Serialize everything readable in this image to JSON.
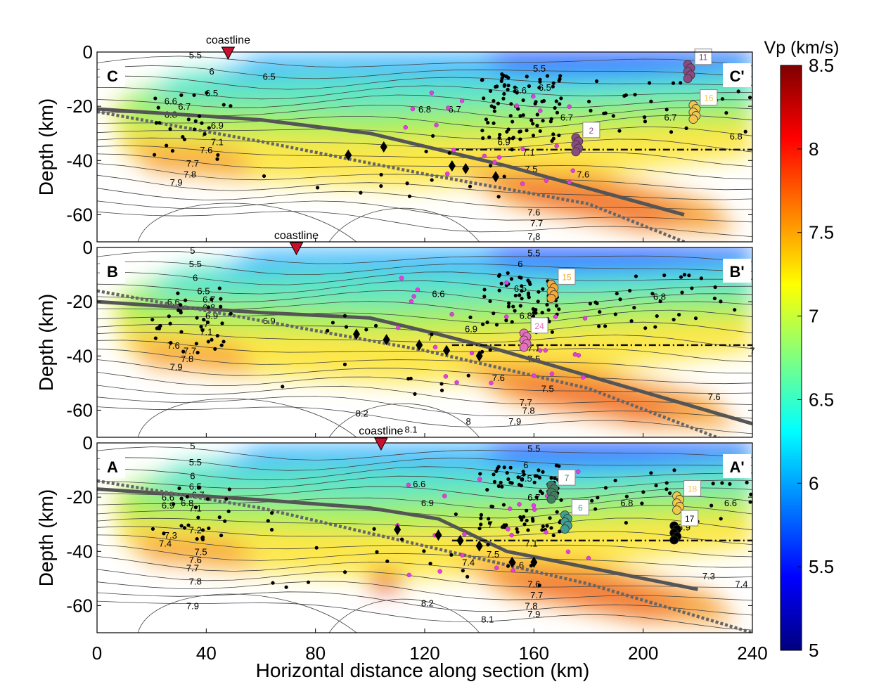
{
  "chart_data": {
    "type": "heatmap",
    "xlabel": "Horizontal distance along section (km)",
    "ylabel": "Depth (km)",
    "xlim": [
      0,
      240
    ],
    "ylim": [
      -70,
      0
    ],
    "x_ticks": [
      0,
      40,
      80,
      120,
      160,
      200,
      240
    ],
    "y_ticks": [
      0,
      -20,
      -40,
      -60
    ],
    "colorbar": {
      "title": "Vp (km/s)",
      "range": [
        5,
        8.5
      ],
      "ticks": [
        8.5,
        8,
        7.5,
        7,
        6.5,
        6,
        5.5,
        5
      ],
      "colormap": "jet"
    },
    "coastline_label": "coastline",
    "panels": [
      {
        "id": "C",
        "start_label": "C",
        "end_label": "C'",
        "coastline_x": 48,
        "velocity_labels": [
          {
            "v": "5.5",
            "x": 36,
            "y": -1
          },
          {
            "v": "6",
            "x": 42,
            "y": -7
          },
          {
            "v": "6.5",
            "x": 42,
            "y": -15
          },
          {
            "v": "6.6",
            "x": 27,
            "y": -18
          },
          {
            "v": "6.7",
            "x": 32,
            "y": -20
          },
          {
            "v": "6.8",
            "x": 27,
            "y": -23
          },
          {
            "v": "6.9",
            "x": 44,
            "y": -27
          },
          {
            "v": "7",
            "x": 39,
            "y": -30
          },
          {
            "v": "7.1",
            "x": 44,
            "y": -33
          },
          {
            "v": "7.6",
            "x": 40,
            "y": -36
          },
          {
            "v": "7.7",
            "x": 35,
            "y": -41
          },
          {
            "v": "7.8",
            "x": 34,
            "y": -45
          },
          {
            "v": "7.9",
            "x": 29,
            "y": -48
          },
          {
            "v": "6.5",
            "x": 63,
            "y": -9
          },
          {
            "v": "6.8",
            "x": 120,
            "y": -21
          },
          {
            "v": "6.7",
            "x": 131,
            "y": -21
          },
          {
            "v": "6.6",
            "x": 155,
            "y": -14
          },
          {
            "v": "6.5",
            "x": 164,
            "y": -13
          },
          {
            "v": "5.5",
            "x": 162,
            "y": -6
          },
          {
            "v": "6.7",
            "x": 172,
            "y": -24
          },
          {
            "v": "6.7",
            "x": 210,
            "y": -24
          },
          {
            "v": "6.8",
            "x": 234,
            "y": -31
          },
          {
            "v": "6.9",
            "x": 149,
            "y": -33
          },
          {
            "v": "7.1",
            "x": 158,
            "y": -37
          },
          {
            "v": "7.5",
            "x": 159,
            "y": -43
          },
          {
            "v": "7.6",
            "x": 178,
            "y": -45
          },
          {
            "v": "7.6",
            "x": 160,
            "y": -59
          },
          {
            "v": "7.7",
            "x": 161,
            "y": -63
          },
          {
            "v": "7.8",
            "x": 160,
            "y": -70
          }
        ],
        "clusters": [
          {
            "label": "11",
            "x": 222,
            "y": -2,
            "color": "#8a4a82"
          },
          {
            "label": "16",
            "x": 224,
            "y": -17,
            "color": "#f2c84a"
          },
          {
            "label": "2",
            "x": 181,
            "y": -29,
            "color": "#8a4a82"
          }
        ]
      },
      {
        "id": "B",
        "start_label": "B",
        "end_label": "B'",
        "coastline_x": 73,
        "velocity_labels": [
          {
            "v": "5",
            "x": 35,
            "y": -1
          },
          {
            "v": "5.5",
            "x": 36,
            "y": -6
          },
          {
            "v": "6",
            "x": 36,
            "y": -11
          },
          {
            "v": "6.5",
            "x": 39,
            "y": -16
          },
          {
            "v": "6.6",
            "x": 28,
            "y": -20
          },
          {
            "v": "6.7",
            "x": 41,
            "y": -19
          },
          {
            "v": "6.8",
            "x": 41,
            "y": -22
          },
          {
            "v": "6.9",
            "x": 42,
            "y": -25
          },
          {
            "v": "7",
            "x": 40,
            "y": -28
          },
          {
            "v": "7.1",
            "x": 40,
            "y": -31
          },
          {
            "v": "7.6",
            "x": 28,
            "y": -36
          },
          {
            "v": "7.7",
            "x": 34,
            "y": -38
          },
          {
            "v": "7.8",
            "x": 33,
            "y": -41
          },
          {
            "v": "7.9",
            "x": 29,
            "y": -44
          },
          {
            "v": "6.9",
            "x": 63,
            "y": -27
          },
          {
            "v": "6.6",
            "x": 125,
            "y": -17
          },
          {
            "v": "7",
            "x": 122,
            "y": -33
          },
          {
            "v": "6.9",
            "x": 137,
            "y": -30
          },
          {
            "v": "6.5",
            "x": 155,
            "y": -15
          },
          {
            "v": "6",
            "x": 155,
            "y": -6
          },
          {
            "v": "5.5",
            "x": 160,
            "y": -2
          },
          {
            "v": "6.8",
            "x": 157,
            "y": -25
          },
          {
            "v": "6.8",
            "x": 206,
            "y": -18
          },
          {
            "v": "7",
            "x": 240,
            "y": -38
          },
          {
            "v": "7.1",
            "x": 160,
            "y": -37
          },
          {
            "v": "7.5",
            "x": 160,
            "y": -41
          },
          {
            "v": "7.6",
            "x": 147,
            "y": -48
          },
          {
            "v": "7.5",
            "x": 165,
            "y": -52
          },
          {
            "v": "7.6",
            "x": 226,
            "y": -55
          },
          {
            "v": "7.7",
            "x": 157,
            "y": -57
          },
          {
            "v": "7.8",
            "x": 158,
            "y": -60
          },
          {
            "v": "7.9",
            "x": 153,
            "y": -64
          },
          {
            "v": "8.2",
            "x": 97,
            "y": -61
          },
          {
            "v": "8.1",
            "x": 115,
            "y": -67
          },
          {
            "v": "8",
            "x": 136,
            "y": -64
          }
        ],
        "clusters": [
          {
            "label": "15",
            "x": 172,
            "y": -11,
            "color": "#f2a93a"
          },
          {
            "label": "24",
            "x": 162,
            "y": -29,
            "color": "#e86fbf"
          }
        ]
      },
      {
        "id": "A",
        "start_label": "A",
        "end_label": "A'",
        "coastline_x": 104,
        "velocity_labels": [
          {
            "v": "5",
            "x": 35,
            "y": -1
          },
          {
            "v": "5.5",
            "x": 36,
            "y": -7
          },
          {
            "v": "6",
            "x": 35,
            "y": -12
          },
          {
            "v": "6.5",
            "x": 36,
            "y": -16
          },
          {
            "v": "6.6",
            "x": 26,
            "y": -20
          },
          {
            "v": "6.7",
            "x": 37,
            "y": -19
          },
          {
            "v": "6.9",
            "x": 26,
            "y": -23
          },
          {
            "v": "6.8",
            "x": 33,
            "y": -22
          },
          {
            "v": "7.1",
            "x": 36,
            "y": -24
          },
          {
            "v": "7.2",
            "x": 36,
            "y": -32
          },
          {
            "v": "7.3",
            "x": 27,
            "y": -34
          },
          {
            "v": "7.4",
            "x": 25,
            "y": -37
          },
          {
            "v": "7.5",
            "x": 38,
            "y": -40
          },
          {
            "v": "7.6",
            "x": 36,
            "y": -43
          },
          {
            "v": "7.7",
            "x": 35,
            "y": -46
          },
          {
            "v": "7.8",
            "x": 36,
            "y": -51
          },
          {
            "v": "7.9",
            "x": 35,
            "y": -60
          },
          {
            "v": "6.6",
            "x": 118,
            "y": -15
          },
          {
            "v": "6.9",
            "x": 121,
            "y": -22
          },
          {
            "v": "7",
            "x": 144,
            "y": -30
          },
          {
            "v": "6.5",
            "x": 157,
            "y": -13
          },
          {
            "v": "6",
            "x": 157,
            "y": -8
          },
          {
            "v": "5.5",
            "x": 160,
            "y": -2
          },
          {
            "v": "6.7",
            "x": 160,
            "y": -20
          },
          {
            "v": "6.8",
            "x": 194,
            "y": -22
          },
          {
            "v": "6.6",
            "x": 232,
            "y": -22
          },
          {
            "v": "6.9",
            "x": 215,
            "y": -31
          },
          {
            "v": "7.1",
            "x": 159,
            "y": -37
          },
          {
            "v": "7.4",
            "x": 136,
            "y": -44
          },
          {
            "v": "7.5",
            "x": 145,
            "y": -41
          },
          {
            "v": "7.6",
            "x": 154,
            "y": -45
          },
          {
            "v": "7.3",
            "x": 224,
            "y": -49
          },
          {
            "v": "7.4",
            "x": 236,
            "y": -52
          },
          {
            "v": "7.6",
            "x": 160,
            "y": -52
          },
          {
            "v": "7.7",
            "x": 161,
            "y": -56
          },
          {
            "v": "7.8",
            "x": 159,
            "y": -60
          },
          {
            "v": "7.9",
            "x": 160,
            "y": -63
          },
          {
            "v": "8.2",
            "x": 121,
            "y": -59
          },
          {
            "v": "8.1",
            "x": 143,
            "y": -65
          },
          {
            "v": "6",
            "x": 172,
            "y": -27
          }
        ],
        "clusters": [
          {
            "label": "7",
            "x": 172,
            "y": -13,
            "color": "#3f7f5f"
          },
          {
            "label": "6",
            "x": 177,
            "y": -24,
            "color": "#3fa08f"
          },
          {
            "label": "18",
            "x": 218,
            "y": -17,
            "color": "#f2c84a"
          },
          {
            "label": "17",
            "x": 217,
            "y": -28,
            "color": "#000000"
          }
        ]
      }
    ]
  }
}
